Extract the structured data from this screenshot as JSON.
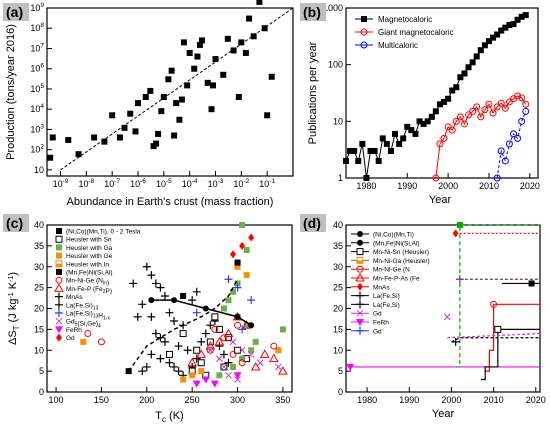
{
  "panels": {
    "a": "(a)",
    "b": "(b)",
    "c": "(c)",
    "d": "(d)"
  },
  "chart_data": [
    {
      "panel": "a",
      "type": "scatter",
      "xlabel": "Abundance in Earth's crust (mass fraction)",
      "ylabel": "Production (tons/year 2016)",
      "xscale": "log",
      "yscale": "log",
      "xlim": [
        3e-10,
        1
      ],
      "ylim": [
        5,
        1000000000.0
      ],
      "x_ticks": [
        1e-09,
        1e-08,
        1e-07,
        1e-06,
        1e-05,
        0.0001,
        0.001,
        0.01,
        0.1
      ],
      "x_tick_labels": [
        "10^-9",
        "10^-8",
        "10^-7",
        "10^-6",
        "10^-5",
        "10^-4",
        "10^-3",
        "10^-2",
        "10^-1"
      ],
      "y_ticks": [
        10,
        100,
        1000,
        10000,
        100000,
        1000000,
        10000000,
        100000000,
        1000000000
      ],
      "y_tick_labels": [
        "10",
        "10^2",
        "10^3",
        "10^4",
        "10^5",
        "10^6",
        "10^7",
        "10^8",
        "10^9"
      ],
      "fit_line": {
        "x": [
          1e-09,
          1
        ],
        "y": [
          10,
          1000000000.0
        ],
        "style": "dashed"
      },
      "points": [
        [
          4e-10,
          40
        ],
        [
          5e-10,
          400
        ],
        [
          2e-09,
          300
        ],
        [
          5e-09,
          60
        ],
        [
          2e-08,
          400
        ],
        [
          5e-08,
          250
        ],
        [
          1e-07,
          5000
        ],
        [
          2e-07,
          400
        ],
        [
          3e-07,
          1200
        ],
        [
          5e-07,
          6000
        ],
        [
          8e-07,
          800
        ],
        [
          1e-06,
          20000
        ],
        [
          2e-06,
          40000
        ],
        [
          3e-06,
          80000
        ],
        [
          4e-06,
          150
        ],
        [
          5e-06,
          200
        ],
        [
          6e-06,
          600
        ],
        [
          8e-06,
          8000
        ],
        [
          1e-05,
          40000
        ],
        [
          1.5e-05,
          300000
        ],
        [
          2e-05,
          800000
        ],
        [
          2.5e-05,
          500
        ],
        [
          3e-05,
          20000
        ],
        [
          4e-05,
          3000
        ],
        [
          5e-05,
          30000
        ],
        [
          6e-05,
          20000000
        ],
        [
          8e-05,
          150000
        ],
        [
          0.0001,
          6000000
        ],
        [
          0.00015,
          1000000
        ],
        [
          0.0002,
          4000000
        ],
        [
          0.00025,
          15000000
        ],
        [
          0.0003,
          25000000
        ],
        [
          0.0005,
          200000
        ],
        [
          0.0007,
          10000
        ],
        [
          0.0008,
          150000
        ],
        [
          0.001,
          3000000
        ],
        [
          0.002,
          500000
        ],
        [
          0.003,
          30000000
        ],
        [
          0.005,
          8000000
        ],
        [
          0.008,
          40000
        ],
        [
          0.01,
          20000000
        ],
        [
          0.015,
          6000000
        ],
        [
          0.02,
          300000000
        ],
        [
          0.03,
          40000000
        ],
        [
          0.05,
          2000000000
        ],
        [
          0.08,
          100000000
        ],
        [
          0.1,
          5000
        ],
        [
          0.15,
          400000
        ]
      ]
    },
    {
      "panel": "b",
      "type": "line",
      "xlabel": "Year",
      "ylabel": "Publications per year",
      "yscale": "log",
      "xlim": [
        1975,
        2022
      ],
      "ylim": [
        1,
        1000
      ],
      "x_ticks": [
        1980,
        1990,
        2000,
        2010,
        2020
      ],
      "y_ticks": [
        1,
        10,
        100,
        1000
      ],
      "legend_position": "top-left",
      "series": [
        {
          "name": "Magnetocaloric",
          "color": "#000000",
          "marker": "square",
          "x": [
            1975,
            1976,
            1977,
            1978,
            1979,
            1980,
            1981,
            1982,
            1983,
            1984,
            1985,
            1986,
            1987,
            1988,
            1989,
            1990,
            1991,
            1992,
            1993,
            1994,
            1995,
            1996,
            1997,
            1998,
            1999,
            2000,
            2001,
            2002,
            2003,
            2004,
            2005,
            2006,
            2007,
            2008,
            2009,
            2010,
            2011,
            2012,
            2013,
            2014,
            2015,
            2016,
            2017,
            2018,
            2019
          ],
          "y": [
            2,
            3,
            3,
            2,
            4,
            1,
            3,
            3,
            2,
            5,
            4,
            3,
            6,
            4,
            5,
            8,
            7,
            6,
            10,
            9,
            10,
            12,
            15,
            20,
            22,
            25,
            35,
            40,
            60,
            70,
            90,
            110,
            140,
            180,
            220,
            260,
            300,
            340,
            400,
            450,
            500,
            520,
            620,
            700,
            750
          ]
        },
        {
          "name": "Giant magnetocaloric",
          "color": "#ff0000",
          "marker": "circle-open",
          "x": [
            1997,
            1998,
            1999,
            2000,
            2001,
            2002,
            2003,
            2004,
            2005,
            2006,
            2007,
            2008,
            2009,
            2010,
            2011,
            2012,
            2013,
            2014,
            2015,
            2016,
            2017,
            2018,
            2019
          ],
          "y": [
            1,
            4,
            5,
            8,
            7,
            10,
            12,
            9,
            13,
            15,
            18,
            12,
            16,
            20,
            14,
            18,
            21,
            17,
            22,
            25,
            28,
            26,
            20
          ]
        },
        {
          "name": "Multicaloric",
          "color": "#0000ff",
          "marker": "circle-open",
          "x": [
            2012,
            2013,
            2014,
            2015,
            2016,
            2017,
            2018,
            2019
          ],
          "y": [
            1,
            3,
            2,
            4,
            6,
            5,
            10,
            15
          ]
        }
      ]
    },
    {
      "panel": "c",
      "type": "scatter",
      "xlabel": "T",
      "xlabel_sub": "c",
      "xlabel_unit": "(K)",
      "ylabel": "ΔS",
      "ylabel_sub": "T",
      "ylabel_unit": "(J kg",
      "ylabel_unit2": "K",
      "xlim": [
        90,
        360
      ],
      "ylim": [
        0,
        40
      ],
      "x_ticks": [
        100,
        150,
        200,
        250,
        300,
        350
      ],
      "y_ticks": [
        0,
        5,
        10,
        15,
        20,
        25,
        30,
        35,
        40
      ],
      "legend": [
        "(Ni,Co)(Mn,Ti),  0 - 2 Tesla",
        "Heusler with Sn",
        "Heusler with Ga",
        "Heusler with Ge",
        "Heusler with In",
        "(Mn,Fe)Ni(Si,Al)",
        "Mn-Ni-Ge (N",
        "Mn-Fe-P (Fe",
        "MnAs",
        "La(Fe,Si)",
        "La(Fe,Si)",
        "Gd",
        "FeRh",
        "Gd"
      ],
      "legend_extra": {
        "sub_in": "In",
        "sub_fe2p": "2",
        "sub_13": "13",
        "sub_h": "H",
        "sub_13b": "13",
        "sub_1x": "1-x",
        "gd_formula": "(Si,Ge)",
        "gd5": "5",
        "gd4": "4"
      },
      "solid_curve": {
        "x": [
          205,
          230,
          265,
          300,
          315
        ],
        "y": [
          22,
          22,
          20,
          18,
          16
        ]
      },
      "dashed_curve": {
        "x": [
          180,
          200,
          230,
          260,
          275,
          290,
          300
        ],
        "y": [
          5,
          11,
          15,
          18,
          20,
          23,
          27
        ]
      }
    },
    {
      "panel": "d",
      "type": "line",
      "xlabel": "Year",
      "xlim": [
        1975,
        2021
      ],
      "ylim": [
        0,
        40
      ],
      "x_ticks": [
        1980,
        1990,
        2000,
        2010,
        2020
      ],
      "y_ticks": [
        0,
        5,
        10,
        15,
        20,
        25,
        30,
        35,
        40
      ],
      "legend": [
        "(Ni,Co)(Mn,Ti)",
        "(Mn,Fe)Ni(Si,Al)",
        "Mn-Ni-Sn (Heusler)",
        "Mn-Ni-Ga (Heusler)",
        "Mn-Ni-Ge (N",
        "Mn-Fe-P-As (Fe",
        "MnAs",
        "La(Fe,Si)",
        "La(Fe,Si)",
        "Gd",
        "FeRh",
        "Gd"
      ]
    }
  ]
}
